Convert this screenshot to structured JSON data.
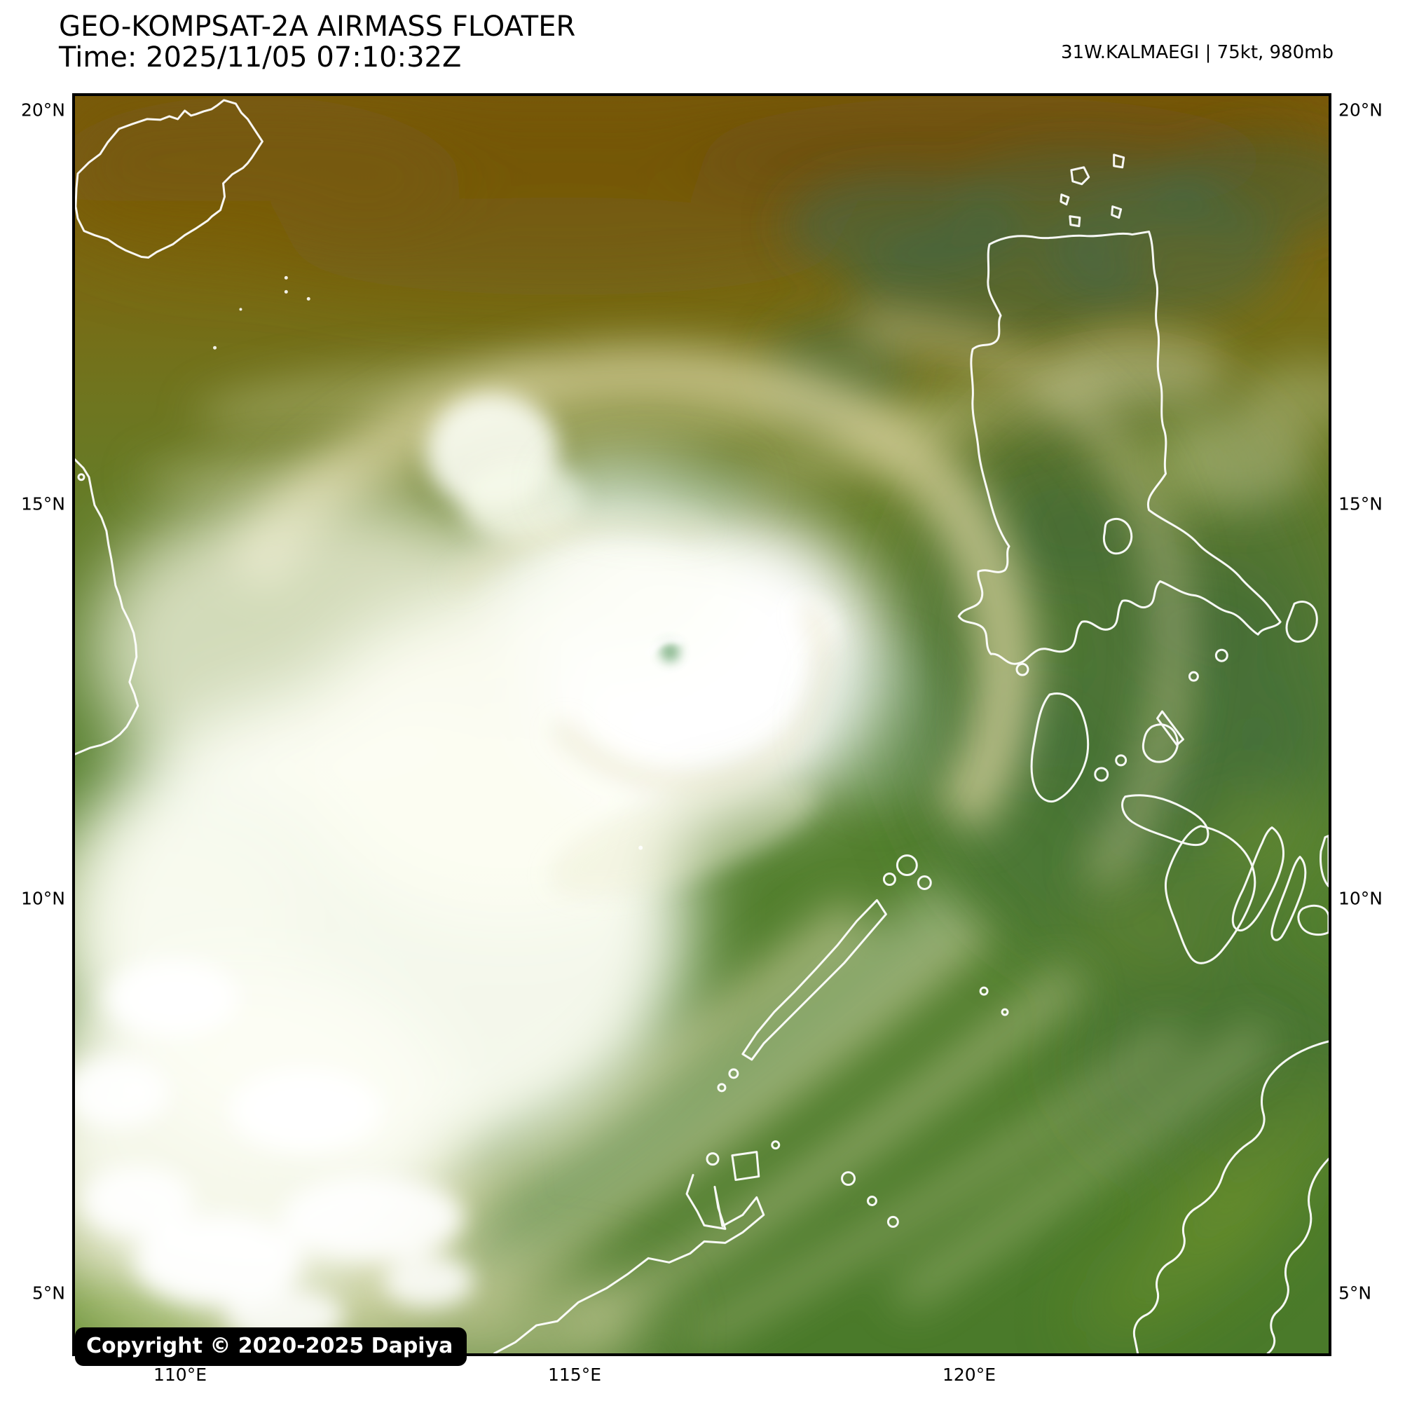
{
  "header": {
    "title": "GEO-KOMPSAT-2A AIRMASS FLOATER",
    "time": "Time: 2025/11/05 07:10:32Z",
    "storm": "31W.KALMAEGI | 75kt, 980mb"
  },
  "axes": {
    "lat": [
      {
        "label": "20°N",
        "pct": 1.33
      },
      {
        "label": "15°N",
        "pct": 32.52
      },
      {
        "label": "10°N",
        "pct": 63.76
      },
      {
        "label": "5°N",
        "pct": 95.0
      }
    ],
    "lon": [
      {
        "label": "110°E",
        "pct": 8.57
      },
      {
        "label": "115°E",
        "pct": 39.9
      },
      {
        "label": "120°E",
        "pct": 71.23
      }
    ]
  },
  "copyright": "Copyright © 2020-2025 Dapiya",
  "colors": {
    "frame_border": "#000000",
    "dry_air_brown": "#7b5c0d",
    "airmass_olive": "#6f751f",
    "airmass_green": "#54802f",
    "dark_teal_green": "#3e6b3d",
    "cloud_cream_band": "#d9d4a0",
    "cloud_white": "#ffffff",
    "coastline": "#ffffff",
    "badge_bg": "#000000",
    "badge_text": "#ffffff"
  }
}
